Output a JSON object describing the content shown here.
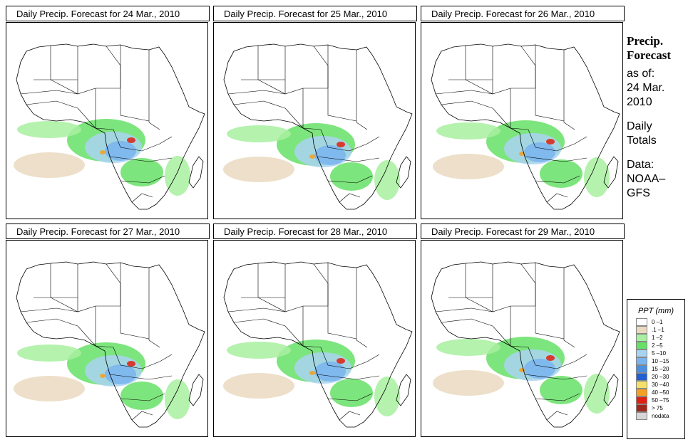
{
  "panels": [
    {
      "title": "Daily Precip. Forecast for  24 Mar., 2010"
    },
    {
      "title": "Daily Precip. Forecast for  25 Mar., 2010"
    },
    {
      "title": "Daily Precip. Forecast for  26 Mar., 2010"
    },
    {
      "title": "Daily Precip. Forecast for  27 Mar., 2010"
    },
    {
      "title": "Daily Precip. Forecast for  28 Mar., 2010"
    },
    {
      "title": "Daily Precip. Forecast for  29 Mar., 2010"
    }
  ],
  "sidebar": {
    "title_line1": "Precip.",
    "title_line2": "Forecast",
    "asof_line1": "as of:",
    "asof_line2": "24 Mar.",
    "asof_line3": "2010",
    "daily_line1": "Daily",
    "daily_line2": "Totals",
    "data_line1": "Data:",
    "data_line2": "NOAA–",
    "data_line3": "GFS"
  },
  "legend": {
    "title": "PPT (mm)",
    "items": [
      {
        "label": "0 –1",
        "color": "#ffffff"
      },
      {
        "label": ".1 –1",
        "color": "#ead9c0"
      },
      {
        "label": "1 –2",
        "color": "#a8f0a0"
      },
      {
        "label": "2 –5",
        "color": "#66e066"
      },
      {
        "label": "5 –10",
        "color": "#a9d3f2"
      },
      {
        "label": "10 –15",
        "color": "#79b4ee"
      },
      {
        "label": "15 –20",
        "color": "#4a90e2"
      },
      {
        "label": "20 –30",
        "color": "#2060d0"
      },
      {
        "label": "30 –40",
        "color": "#f5e06a"
      },
      {
        "label": "40 –50",
        "color": "#f5a020"
      },
      {
        "label": "50 –75",
        "color": "#e02010"
      },
      {
        "label": "> 75",
        "color": "#a0281e"
      },
      {
        "label": "nodata",
        "color": "#d6d6d6"
      }
    ]
  }
}
